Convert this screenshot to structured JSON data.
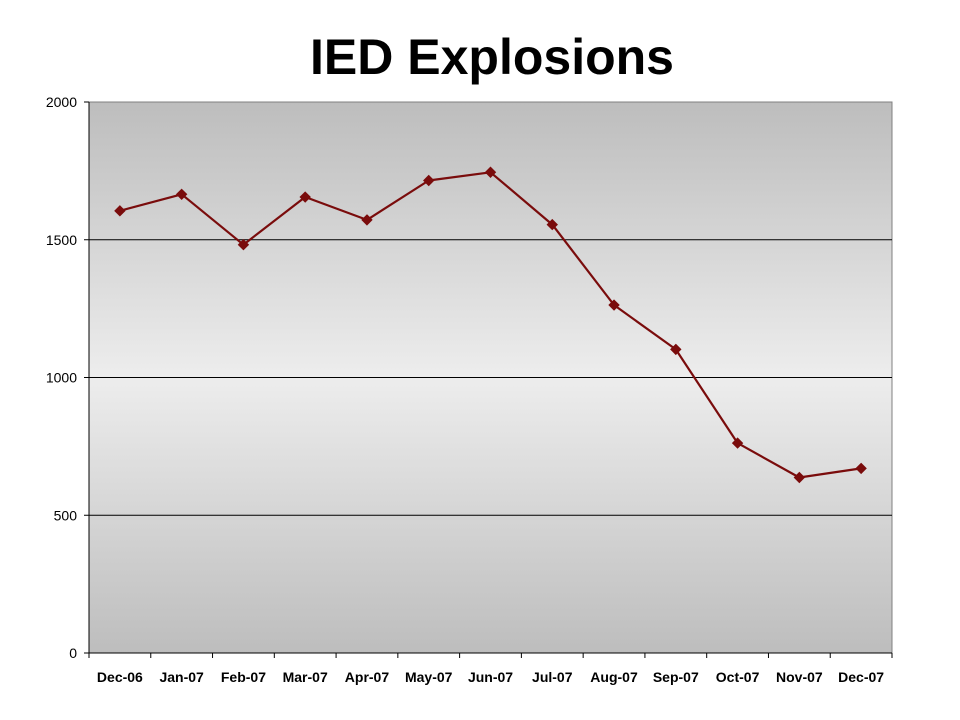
{
  "chart_data": {
    "type": "line",
    "title": "IED Explosions",
    "xlabel": "",
    "ylabel": "",
    "categories": [
      "Dec-06",
      "Jan-07",
      "Feb-07",
      "Mar-07",
      "Apr-07",
      "May-07",
      "Jun-07",
      "Jul-07",
      "Aug-07",
      "Sep-07",
      "Oct-07",
      "Nov-07",
      "Dec-07"
    ],
    "series": [
      {
        "values": [
          1605,
          1665,
          1482,
          1655,
          1572,
          1715,
          1745,
          1555,
          1263,
          1102,
          762,
          637,
          670
        ],
        "color": "#7a0c0c",
        "marker": "diamond"
      }
    ],
    "ylim": [
      0,
      2000
    ],
    "yticks": [
      0,
      500,
      1000,
      1500,
      2000
    ],
    "grid": true,
    "legend": "none",
    "plot_background": "gradient-gray"
  }
}
